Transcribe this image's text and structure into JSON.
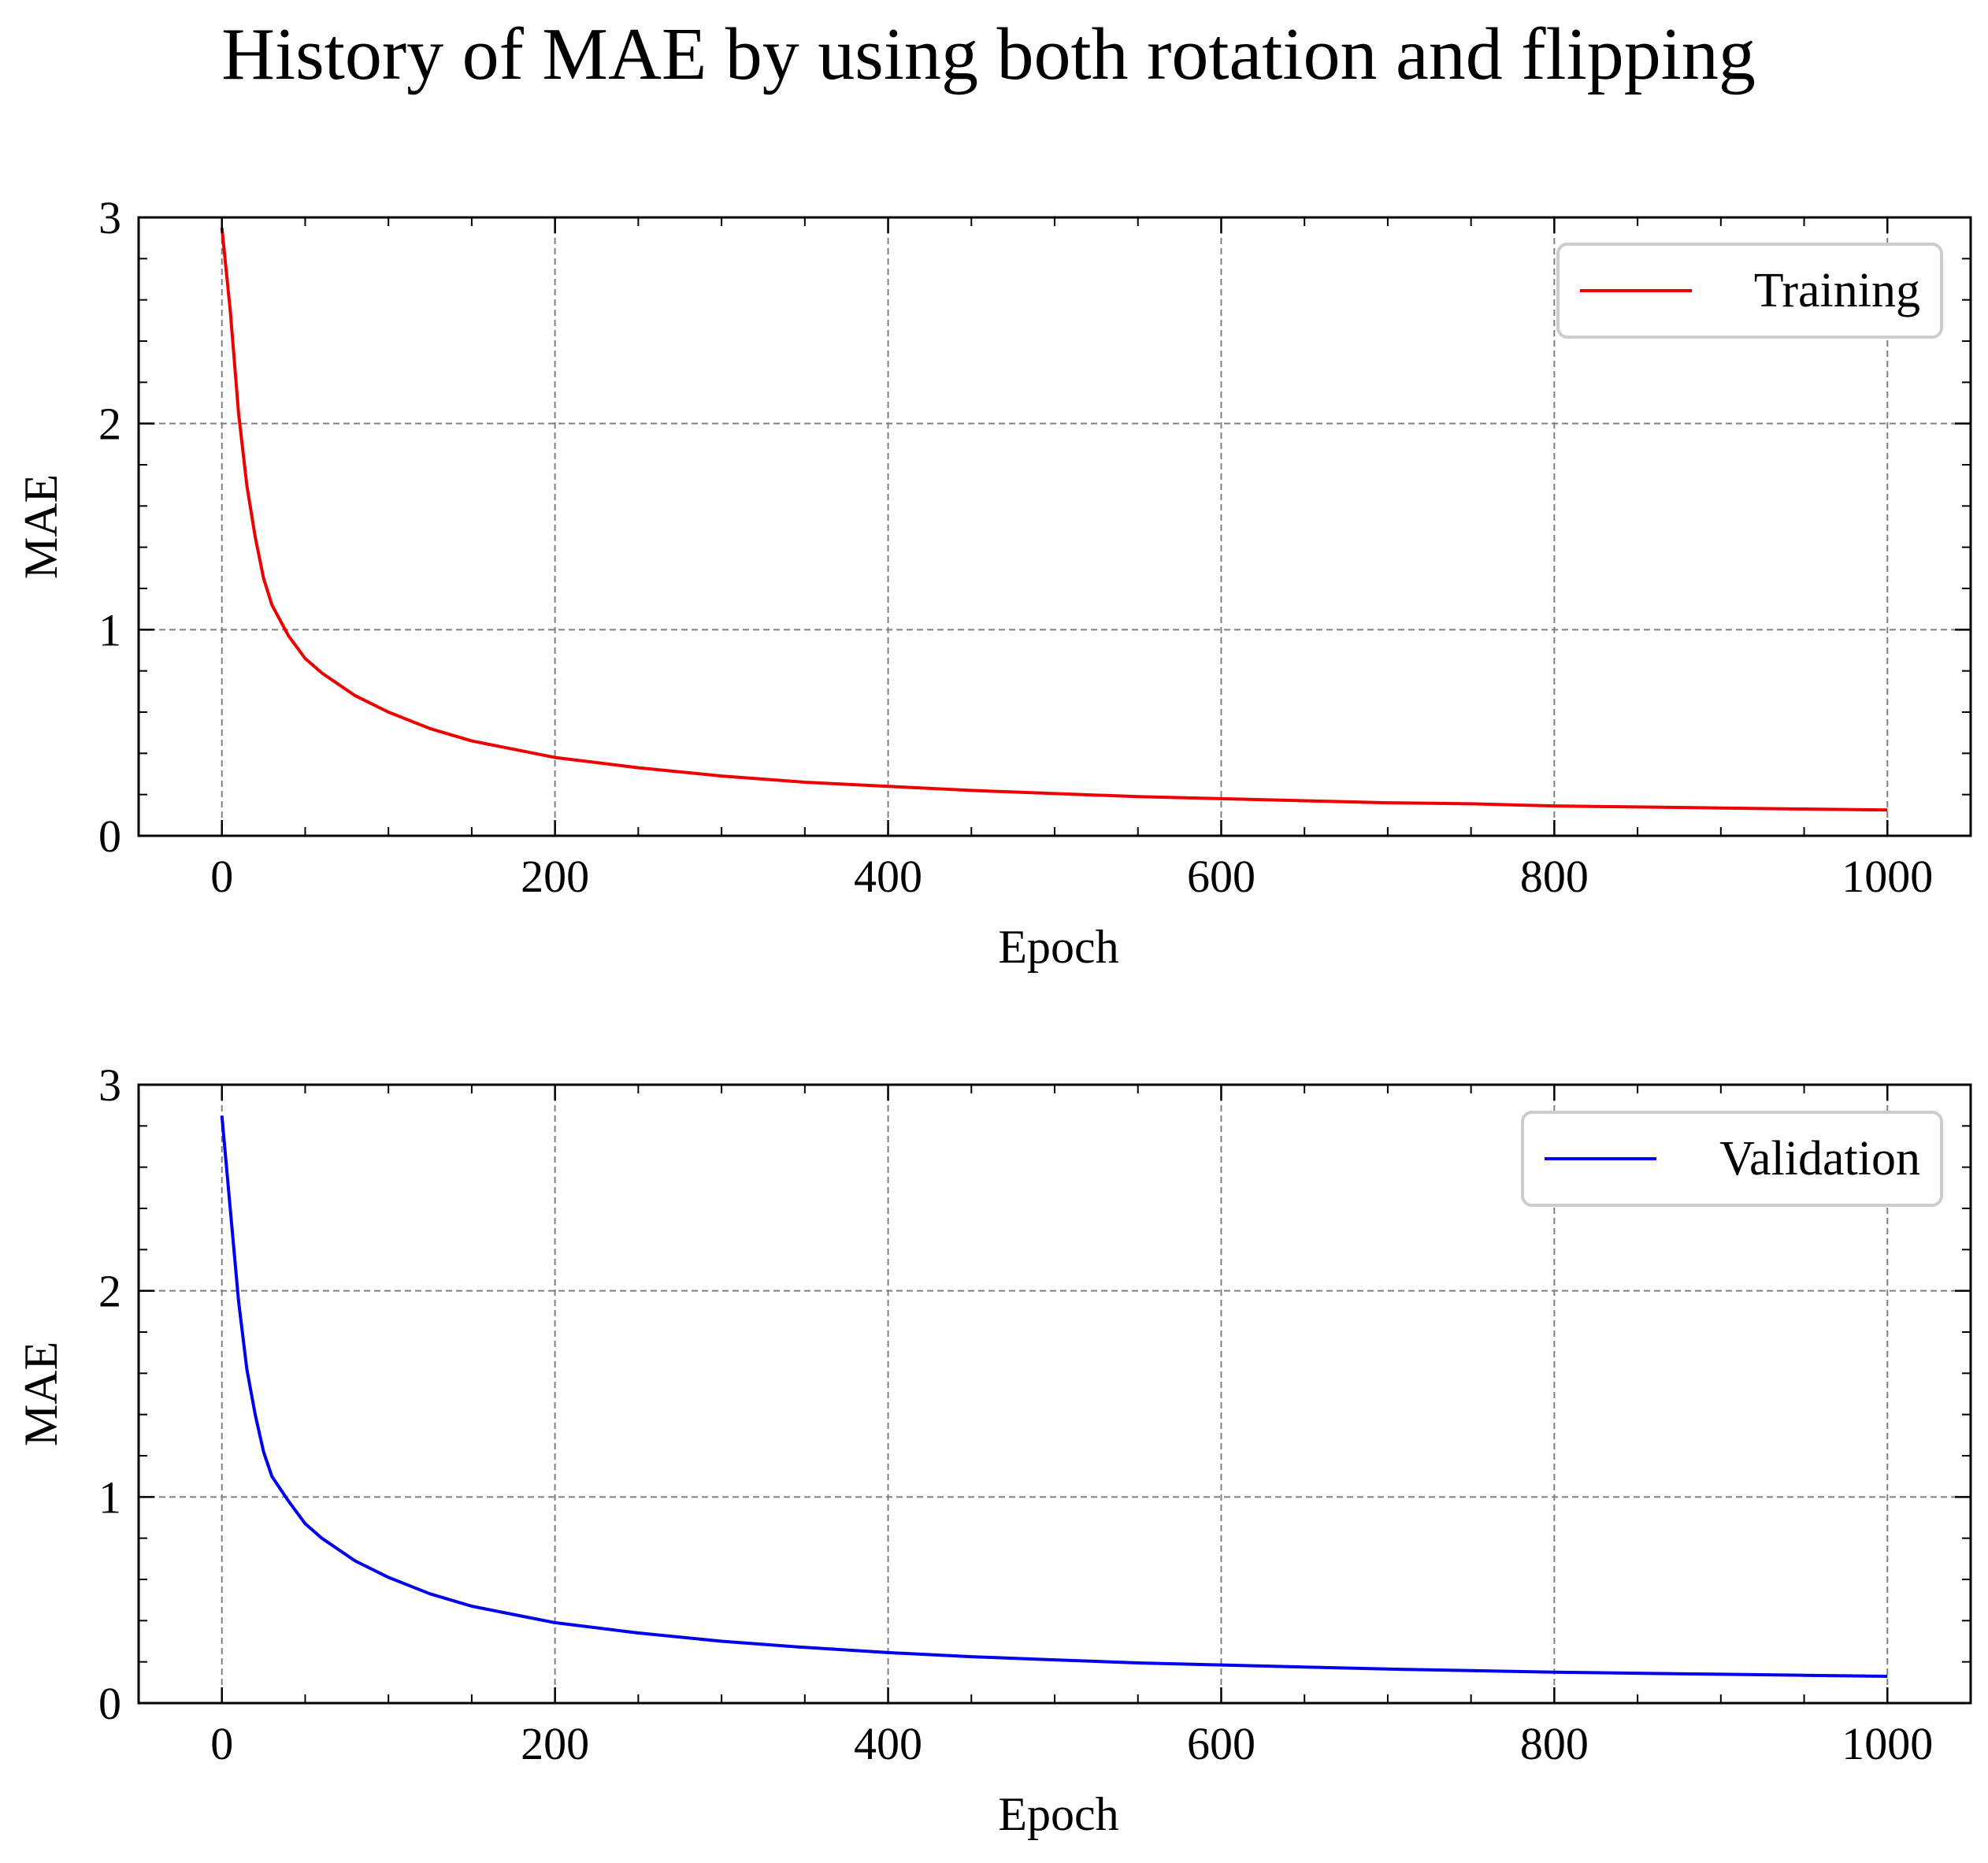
{
  "title": "History of MAE by using both rotation and flipping",
  "colors": {
    "training": "#ee0000",
    "validation": "#0000ee",
    "grid": "#808080",
    "axis": "#000000"
  },
  "chart_data": [
    {
      "type": "line",
      "xlabel": "Epoch",
      "ylabel": "MAE",
      "xlim": [
        -50,
        1050
      ],
      "ylim": [
        0,
        3
      ],
      "xticks": [
        0,
        200,
        400,
        600,
        800,
        1000
      ],
      "xtick_labels": [
        "0",
        "200",
        "400",
        "600",
        "800",
        "1000"
      ],
      "yticks": [
        0,
        1,
        2,
        3
      ],
      "ytick_labels": [
        "0",
        "1",
        "2",
        "3"
      ],
      "grid": true,
      "legend": "top-right",
      "series": [
        {
          "name": "Training",
          "color": "#ee0000",
          "x": [
            0,
            5,
            10,
            15,
            20,
            25,
            30,
            40,
            50,
            60,
            80,
            100,
            125,
            150,
            175,
            200,
            250,
            300,
            350,
            400,
            450,
            500,
            550,
            600,
            650,
            700,
            750,
            800,
            850,
            900,
            950,
            1000
          ],
          "y": [
            2.95,
            2.55,
            2.05,
            1.7,
            1.45,
            1.25,
            1.12,
            0.97,
            0.86,
            0.79,
            0.68,
            0.6,
            0.52,
            0.46,
            0.42,
            0.38,
            0.33,
            0.29,
            0.26,
            0.24,
            0.22,
            0.205,
            0.19,
            0.18,
            0.17,
            0.16,
            0.155,
            0.145,
            0.14,
            0.135,
            0.13,
            0.125
          ]
        }
      ]
    },
    {
      "type": "line",
      "xlabel": "Epoch",
      "ylabel": "MAE",
      "xlim": [
        -50,
        1050
      ],
      "ylim": [
        0,
        3
      ],
      "xticks": [
        0,
        200,
        400,
        600,
        800,
        1000
      ],
      "xtick_labels": [
        "0",
        "200",
        "400",
        "600",
        "800",
        "1000"
      ],
      "yticks": [
        0,
        1,
        2,
        3
      ],
      "ytick_labels": [
        "0",
        "1",
        "2",
        "3"
      ],
      "grid": true,
      "legend": "top-right",
      "series": [
        {
          "name": "Validation",
          "color": "#0000ee",
          "x": [
            0,
            5,
            10,
            15,
            20,
            25,
            30,
            40,
            50,
            60,
            80,
            100,
            125,
            150,
            175,
            200,
            250,
            300,
            350,
            400,
            450,
            500,
            550,
            600,
            650,
            700,
            750,
            800,
            850,
            900,
            950,
            1000
          ],
          "y": [
            2.85,
            2.4,
            1.95,
            1.62,
            1.4,
            1.22,
            1.1,
            0.98,
            0.87,
            0.8,
            0.69,
            0.61,
            0.53,
            0.47,
            0.43,
            0.39,
            0.34,
            0.3,
            0.27,
            0.245,
            0.225,
            0.21,
            0.195,
            0.185,
            0.175,
            0.165,
            0.158,
            0.15,
            0.145,
            0.14,
            0.135,
            0.13
          ]
        }
      ]
    }
  ]
}
